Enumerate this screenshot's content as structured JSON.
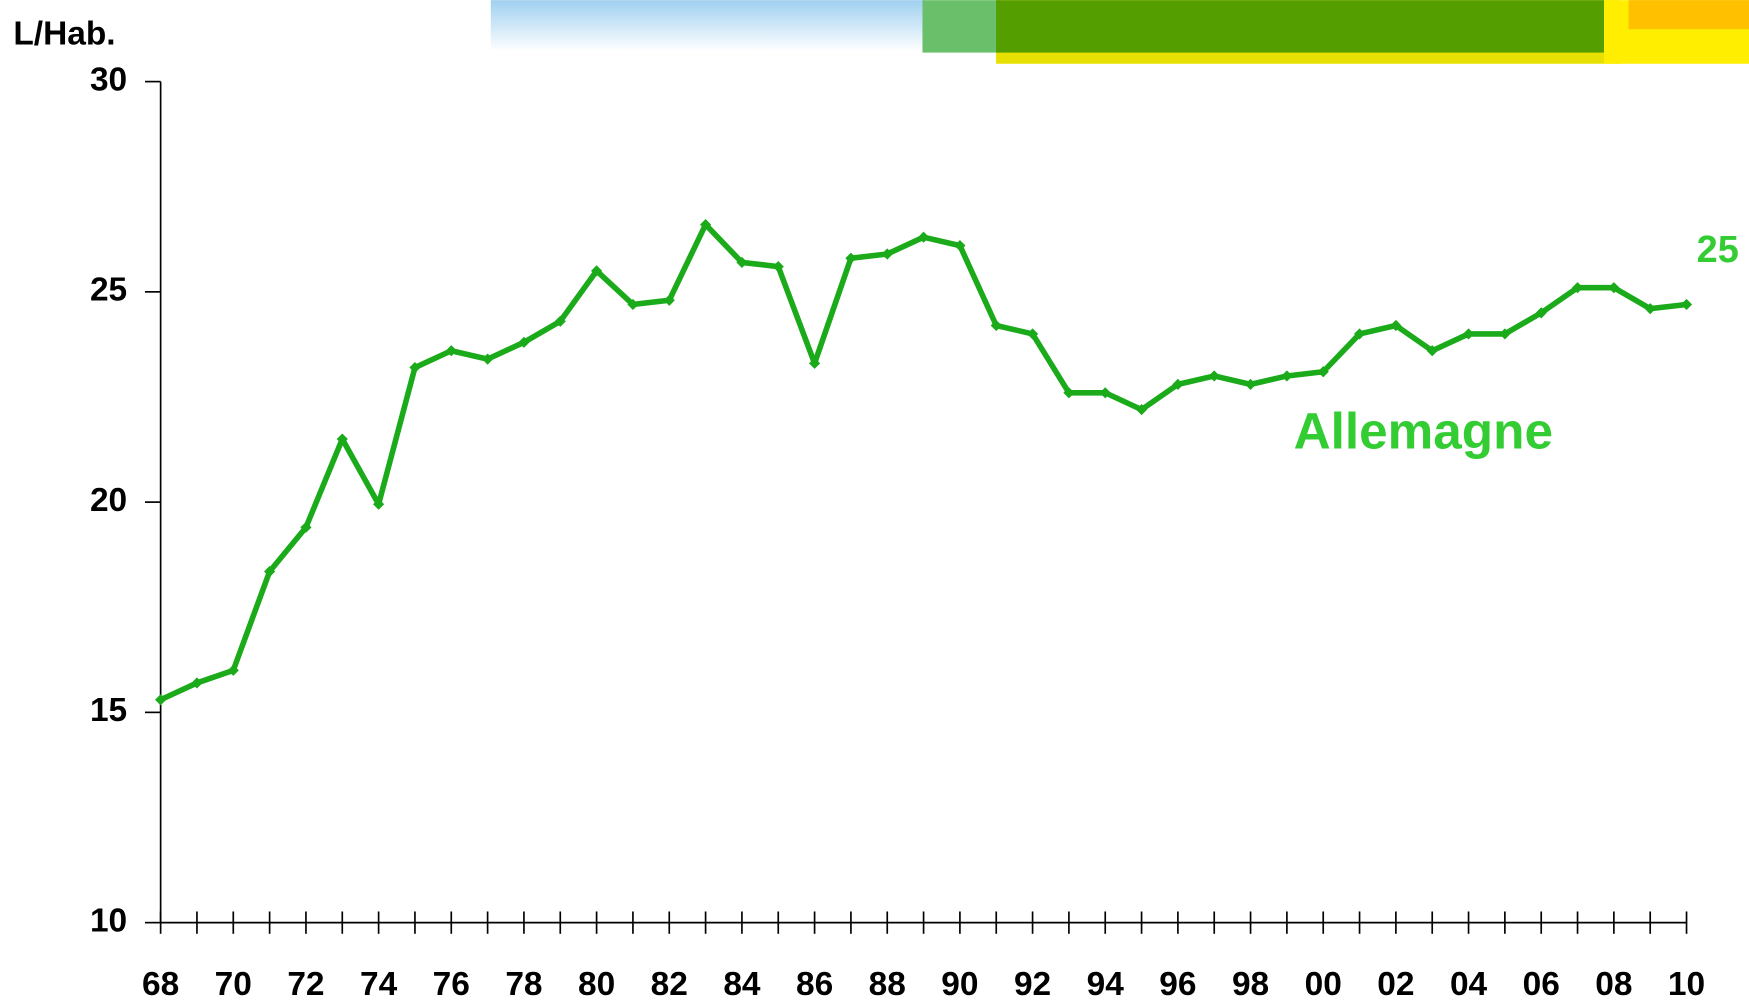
{
  "chart_data": {
    "type": "line",
    "y_label": "L/Hab.",
    "categories": [
      "68",
      null,
      "70",
      null,
      "72",
      null,
      "74",
      null,
      "76",
      null,
      "78",
      null,
      "80",
      null,
      "82",
      null,
      "84",
      null,
      "86",
      null,
      "88",
      null,
      "90",
      null,
      "92",
      null,
      "94",
      null,
      "96",
      null,
      "98",
      null,
      "00",
      null,
      "02",
      null,
      "04",
      null,
      "06",
      null,
      "08",
      null,
      "10"
    ],
    "series": [
      {
        "name": "Allemagne",
        "color": "#1aaa1a",
        "label_color": "#33cc33",
        "values": [
          15.3,
          15.7,
          16.0,
          18.35,
          19.4,
          21.5,
          19.95,
          23.2,
          23.6,
          23.4,
          23.8,
          24.3,
          25.5,
          24.7,
          24.8,
          26.6,
          25.7,
          25.6,
          23.3,
          25.8,
          25.9,
          26.3,
          26.1,
          24.2,
          24.0,
          22.6,
          22.6,
          22.2,
          22.8,
          23.0,
          22.8,
          23.0,
          23.1,
          24.0,
          24.2,
          23.6,
          24.0,
          24.0,
          24.5,
          25.1,
          25.1,
          24.6,
          24.7
        ]
      }
    ],
    "annotations": [
      {
        "text": "25"
      }
    ],
    "ylim": [
      10,
      30
    ],
    "yticks": [
      10,
      15,
      20,
      25,
      30
    ],
    "grid": false
  }
}
